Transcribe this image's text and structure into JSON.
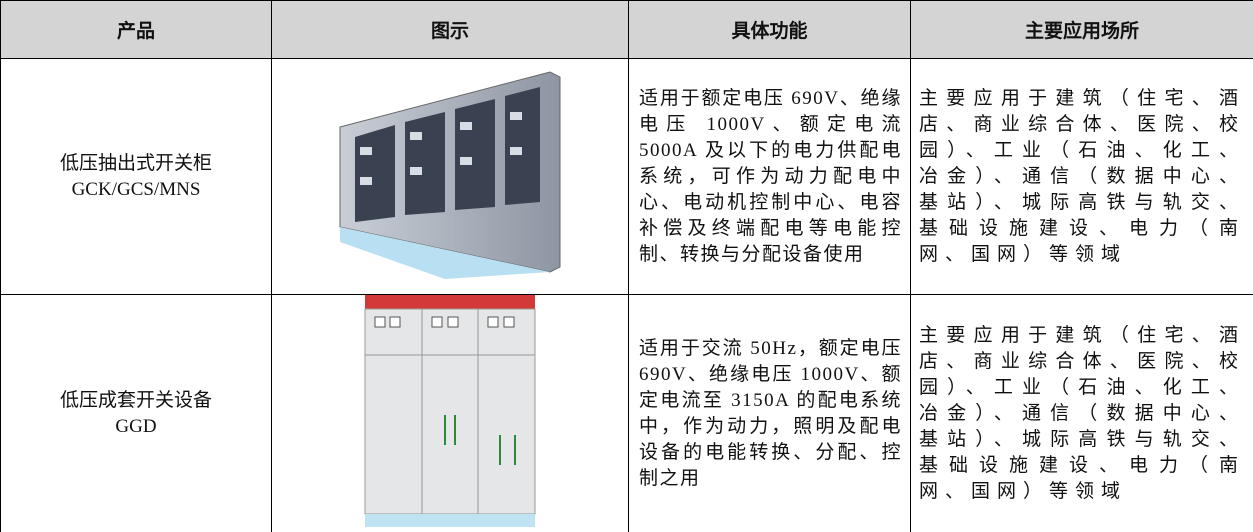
{
  "header": {
    "columns": [
      "产品",
      "图示",
      "具体功能",
      "主要应用场所"
    ]
  },
  "table": {
    "rows": [
      {
        "product": [
          "低压抽出式开关柜",
          "GCK/GCS/MNS"
        ],
        "function": "适用于额定电压 690V、绝缘电压 1000V、额定电流 5000A 及以下的电力供配电系统，可作为动力配电中心、电动机控制中心、电容补偿及终端配电等电能控制、转换与分配设备使用",
        "application": "主要应用于建筑（住宅、酒店、商业综合体、医院、校园）、工业（石油、化工、冶金）、通信（数据中心、基站）、城际高铁与轨交、基础设施建设、电力（南网、国网）等领域"
      },
      {
        "product": [
          "低压成套开关设备",
          "GGD"
        ],
        "function": "适用于交流 50Hz，额定电压 690V、绝缘电压 1000V、额定电流至 3150A 的配电系统中，作为动力，照明及配电设备的电能转换、分配、控制之用",
        "application": "主要应用于建筑（住宅、酒店、商业综合体、医院、校园）、工业（石油、化工、冶金）、通信（数据中心、基站）、城际高铁与轨交、基础设施建设、电力（南网、国网）等领域"
      }
    ]
  }
}
